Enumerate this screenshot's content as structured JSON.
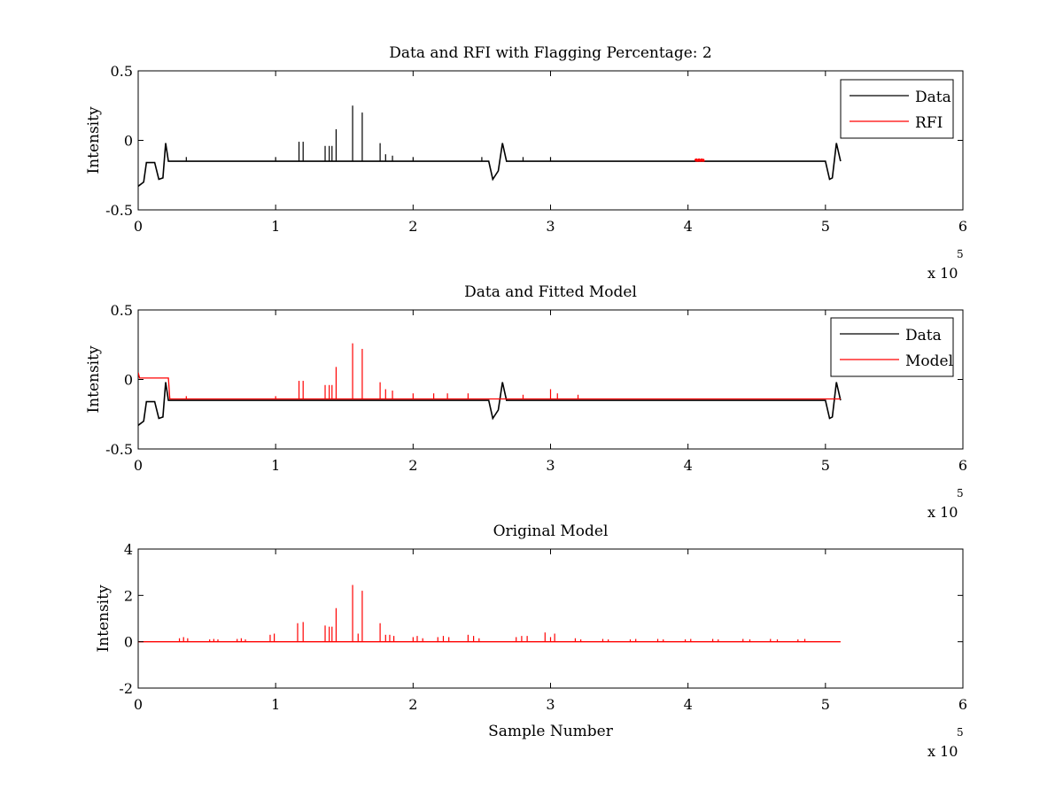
{
  "chart_data": [
    {
      "type": "line",
      "title": "Data and RFI with Flagging Percentage: 2",
      "xlabel": "",
      "ylabel": "Intensity",
      "xlim": [
        0,
        600000
      ],
      "ylim": [
        -0.5,
        0.5
      ],
      "x_ticks": [
        0,
        100000,
        200000,
        300000,
        400000,
        500000,
        600000
      ],
      "x_tick_labels": [
        "0",
        "1",
        "2",
        "3",
        "4",
        "5",
        "6"
      ],
      "y_ticks": [
        -0.5,
        0,
        0.5
      ],
      "y_tick_labels": [
        "-0.5",
        "0",
        "0.5"
      ],
      "x_exponent_label": "x 10",
      "x_exponent": "5",
      "grid": false,
      "legend_position": "top-right",
      "series": [
        {
          "name": "Data",
          "color": "#000000",
          "baseline": -0.148,
          "segments": [
            [
              0,
              -0.33
            ],
            [
              4000,
              -0.3
            ],
            [
              6000,
              -0.16
            ],
            [
              12000,
              -0.16
            ],
            [
              15000,
              -0.28
            ],
            [
              18000,
              -0.27
            ],
            [
              20000,
              -0.02
            ],
            [
              22000,
              -0.15
            ],
            [
              255000,
              -0.15
            ],
            [
              258000,
              -0.28
            ],
            [
              262000,
              -0.22
            ],
            [
              265000,
              -0.02
            ],
            [
              268000,
              -0.15
            ],
            [
              500000,
              -0.15
            ],
            [
              503000,
              -0.28
            ],
            [
              505000,
              -0.27
            ],
            [
              508000,
              -0.02
            ],
            [
              511000,
              -0.15
            ]
          ],
          "spikes": [
            [
              35000,
              -0.12
            ],
            [
              100000,
              -0.12
            ],
            [
              117000,
              -0.01
            ],
            [
              120000,
              -0.01
            ],
            [
              136000,
              -0.04
            ],
            [
              139000,
              -0.04
            ],
            [
              141000,
              -0.04
            ],
            [
              144000,
              0.08
            ],
            [
              156000,
              0.25
            ],
            [
              163000,
              0.2
            ],
            [
              176000,
              -0.02
            ],
            [
              180000,
              -0.1
            ],
            [
              185000,
              -0.11
            ],
            [
              200000,
              -0.12
            ],
            [
              250000,
              -0.12
            ],
            [
              280000,
              -0.12
            ],
            [
              300000,
              -0.12
            ]
          ]
        },
        {
          "name": "RFI",
          "color": "#ff0000",
          "points": [
            [
              405000,
              -0.145
            ],
            [
              406000,
              -0.14
            ],
            [
              407000,
              -0.145
            ],
            [
              408000,
              -0.14
            ],
            [
              409000,
              -0.145
            ],
            [
              410000,
              -0.14
            ],
            [
              411000,
              -0.145
            ],
            [
              412000,
              -0.14
            ]
          ]
        }
      ]
    },
    {
      "type": "line",
      "title": "Data and Fitted Model",
      "xlabel": "",
      "ylabel": "Intensity",
      "xlim": [
        0,
        600000
      ],
      "ylim": [
        -0.5,
        0.5
      ],
      "x_ticks": [
        0,
        100000,
        200000,
        300000,
        400000,
        500000,
        600000
      ],
      "x_tick_labels": [
        "0",
        "1",
        "2",
        "3",
        "4",
        "5",
        "6"
      ],
      "y_ticks": [
        -0.5,
        0,
        0.5
      ],
      "y_tick_labels": [
        "-0.5",
        "0",
        "0.5"
      ],
      "x_exponent_label": "x 10",
      "x_exponent": "5",
      "grid": false,
      "legend_position": "top-right",
      "series": [
        {
          "name": "Data",
          "color": "#000000",
          "baseline": -0.148,
          "segments": [
            [
              0,
              -0.33
            ],
            [
              4000,
              -0.3
            ],
            [
              6000,
              -0.16
            ],
            [
              12000,
              -0.16
            ],
            [
              15000,
              -0.28
            ],
            [
              18000,
              -0.27
            ],
            [
              20000,
              -0.02
            ],
            [
              22000,
              -0.15
            ],
            [
              255000,
              -0.15
            ],
            [
              258000,
              -0.28
            ],
            [
              262000,
              -0.22
            ],
            [
              265000,
              -0.02
            ],
            [
              268000,
              -0.15
            ],
            [
              500000,
              -0.15
            ],
            [
              503000,
              -0.28
            ],
            [
              505000,
              -0.27
            ],
            [
              508000,
              -0.02
            ],
            [
              511000,
              -0.15
            ]
          ],
          "spikes": []
        },
        {
          "name": "Model",
          "color": "#ff0000",
          "baseline": -0.14,
          "segments": [
            [
              0,
              0.05
            ],
            [
              1000,
              0.01
            ],
            [
              22000,
              0.01
            ],
            [
              23000,
              -0.14
            ],
            [
              511000,
              -0.14
            ]
          ],
          "spikes": [
            [
              35000,
              -0.12
            ],
            [
              100000,
              -0.12
            ],
            [
              117000,
              -0.01
            ],
            [
              120000,
              -0.01
            ],
            [
              136000,
              -0.04
            ],
            [
              139000,
              -0.04
            ],
            [
              141000,
              -0.04
            ],
            [
              144000,
              0.09
            ],
            [
              156000,
              0.26
            ],
            [
              163000,
              0.22
            ],
            [
              176000,
              -0.02
            ],
            [
              180000,
              -0.07
            ],
            [
              185000,
              -0.08
            ],
            [
              200000,
              -0.1
            ],
            [
              215000,
              -0.1
            ],
            [
              225000,
              -0.1
            ],
            [
              240000,
              -0.1
            ],
            [
              280000,
              -0.11
            ],
            [
              300000,
              -0.07
            ],
            [
              305000,
              -0.1
            ],
            [
              320000,
              -0.11
            ]
          ]
        }
      ]
    },
    {
      "type": "line",
      "title": "Original Model",
      "xlabel": "Sample Number",
      "ylabel": "Intensity",
      "xlim": [
        0,
        600000
      ],
      "ylim": [
        -2,
        4
      ],
      "x_ticks": [
        0,
        100000,
        200000,
        300000,
        400000,
        500000,
        600000
      ],
      "x_tick_labels": [
        "0",
        "1",
        "2",
        "3",
        "4",
        "5",
        "6"
      ],
      "y_ticks": [
        -2,
        0,
        2,
        4
      ],
      "y_tick_labels": [
        "-2",
        "0",
        "2",
        "4"
      ],
      "x_exponent_label": "x 10",
      "x_exponent": "5",
      "grid": false,
      "series": [
        {
          "name": "",
          "color": "#ff0000",
          "baseline": 0,
          "segments": [
            [
              0,
              0
            ],
            [
              511000,
              0
            ]
          ],
          "spikes": [
            [
              30000,
              0.15
            ],
            [
              33000,
              0.2
            ],
            [
              36000,
              0.15
            ],
            [
              52000,
              0.1
            ],
            [
              55000,
              0.12
            ],
            [
              58000,
              0.1
            ],
            [
              72000,
              0.12
            ],
            [
              75000,
              0.15
            ],
            [
              78000,
              0.1
            ],
            [
              96000,
              0.3
            ],
            [
              99000,
              0.35
            ],
            [
              116000,
              0.8
            ],
            [
              120000,
              0.85
            ],
            [
              136000,
              0.7
            ],
            [
              139000,
              0.65
            ],
            [
              141000,
              0.65
            ],
            [
              144000,
              1.45
            ],
            [
              156000,
              2.45
            ],
            [
              160000,
              0.35
            ],
            [
              163000,
              2.2
            ],
            [
              176000,
              0.8
            ],
            [
              180000,
              0.3
            ],
            [
              183000,
              0.3
            ],
            [
              186000,
              0.25
            ],
            [
              200000,
              0.2
            ],
            [
              203000,
              0.25
            ],
            [
              207000,
              0.15
            ],
            [
              218000,
              0.2
            ],
            [
              222000,
              0.25
            ],
            [
              226000,
              0.2
            ],
            [
              240000,
              0.3
            ],
            [
              244000,
              0.25
            ],
            [
              248000,
              0.15
            ],
            [
              275000,
              0.2
            ],
            [
              279000,
              0.25
            ],
            [
              283000,
              0.25
            ],
            [
              296000,
              0.4
            ],
            [
              300000,
              0.2
            ],
            [
              303000,
              0.35
            ],
            [
              318000,
              0.15
            ],
            [
              322000,
              0.1
            ],
            [
              338000,
              0.12
            ],
            [
              342000,
              0.1
            ],
            [
              358000,
              0.1
            ],
            [
              362000,
              0.12
            ],
            [
              378000,
              0.12
            ],
            [
              382000,
              0.1
            ],
            [
              398000,
              0.1
            ],
            [
              402000,
              0.12
            ],
            [
              418000,
              0.12
            ],
            [
              422000,
              0.1
            ],
            [
              440000,
              0.12
            ],
            [
              445000,
              0.1
            ],
            [
              460000,
              0.12
            ],
            [
              465000,
              0.1
            ],
            [
              480000,
              0.1
            ],
            [
              485000,
              0.12
            ]
          ]
        }
      ]
    }
  ]
}
